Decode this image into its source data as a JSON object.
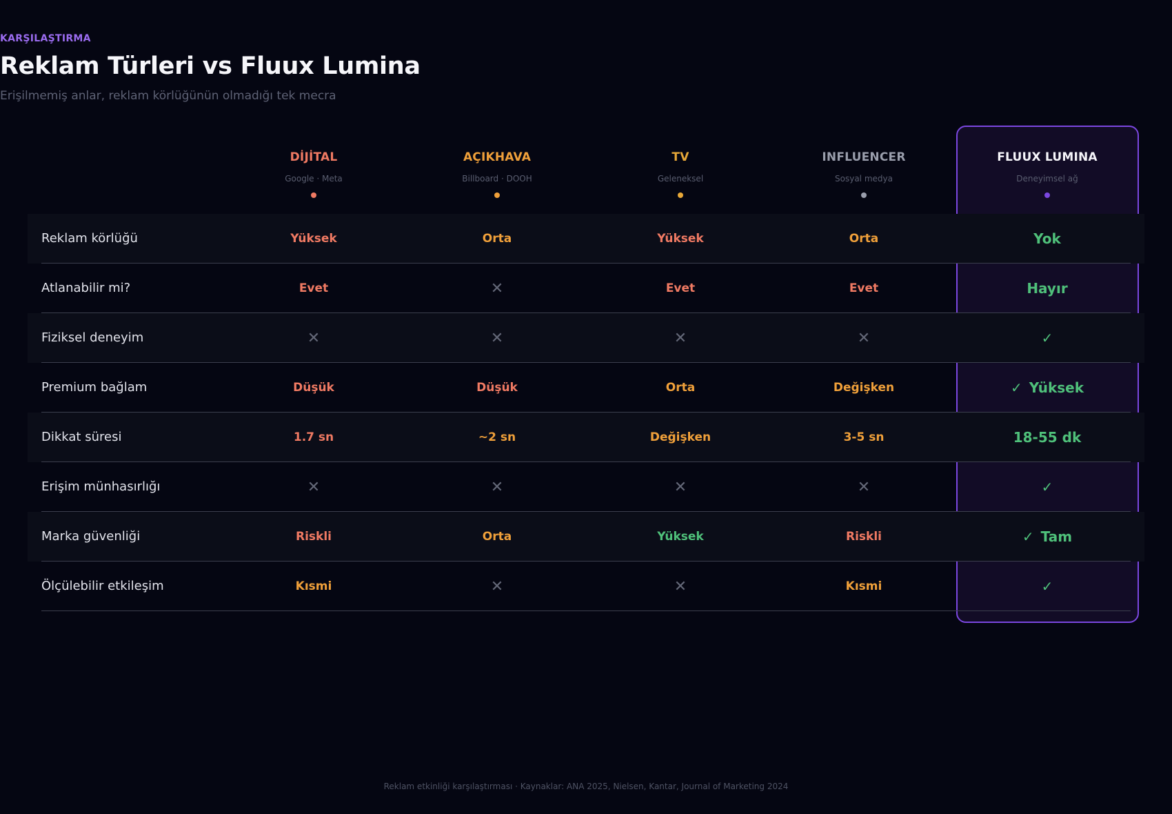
{
  "header": {
    "eyebrow": "KARŞILAŞTIRMA",
    "title": "Reklam Türleri vs Fluux Lumina",
    "subtitle": "Erişilmemiş anlar, reklam körlüğünün olmadığı tek mecra"
  },
  "colors": {
    "red": "#f07a63",
    "orange": "#f0a03a",
    "gold": "#e8a838",
    "gray": "#9a9eac",
    "green": "#4fc07a",
    "purple": "#7b47e0",
    "white": "#f6f6fa"
  },
  "columns": [
    {
      "name": "DİJİTAL",
      "sub": "Google · Meta",
      "color": "#f07a63"
    },
    {
      "name": "AÇIKHAVA",
      "sub": "Billboard · DOOH",
      "color": "#f0a03a"
    },
    {
      "name": "TV",
      "sub": "Geleneksel",
      "color": "#e8a838"
    },
    {
      "name": "INFLUENCER",
      "sub": "Sosyal medya",
      "color": "#9a9eac"
    },
    {
      "name": "FLUUX LUMINA",
      "sub": "Deneyimsel ağ",
      "color": "#f6f6fa",
      "dot": "#7b47e0"
    }
  ],
  "rows": [
    {
      "label": "Reklam körlüğü",
      "cells": [
        {
          "text": "Yüksek",
          "color": "#f07a63"
        },
        {
          "text": "Orta",
          "color": "#f0a03a"
        },
        {
          "text": "Yüksek",
          "color": "#f07a63"
        },
        {
          "text": "Orta",
          "color": "#f0a03a"
        },
        {
          "text": "Yok",
          "color": "#4fc07a"
        }
      ]
    },
    {
      "label": "Atlanabilir mi?",
      "cells": [
        {
          "text": "Evet",
          "color": "#f07a63"
        },
        {
          "icon": "x-icon"
        },
        {
          "text": "Evet",
          "color": "#f07a63"
        },
        {
          "text": "Evet",
          "color": "#f07a63"
        },
        {
          "text": "Hayır",
          "color": "#4fc07a"
        }
      ]
    },
    {
      "label": "Fiziksel deneyim",
      "cells": [
        {
          "icon": "x-icon"
        },
        {
          "icon": "x-icon"
        },
        {
          "icon": "x-icon"
        },
        {
          "icon": "x-icon"
        },
        {
          "icon": "check-icon"
        }
      ]
    },
    {
      "label": "Premium bağlam",
      "cells": [
        {
          "text": "Düşük",
          "color": "#f07a63"
        },
        {
          "text": "Düşük",
          "color": "#f07a63"
        },
        {
          "text": "Orta",
          "color": "#f0a03a"
        },
        {
          "text": "Değişken",
          "color": "#f0a03a"
        },
        {
          "text": "Yüksek",
          "color": "#4fc07a",
          "icon": "check-icon"
        }
      ]
    },
    {
      "label": "Dikkat süresi",
      "cells": [
        {
          "text": "1.7 sn",
          "color": "#f07a63"
        },
        {
          "text": "~2 sn",
          "color": "#f0a03a"
        },
        {
          "text": "Değişken",
          "color": "#f0a03a"
        },
        {
          "text": "3-5 sn",
          "color": "#f0a03a"
        },
        {
          "text": "18-55 dk",
          "color": "#4fc07a"
        }
      ]
    },
    {
      "label": "Erişim münhasırlığı",
      "cells": [
        {
          "icon": "x-icon"
        },
        {
          "icon": "x-icon"
        },
        {
          "icon": "x-icon"
        },
        {
          "icon": "x-icon"
        },
        {
          "icon": "check-icon"
        }
      ]
    },
    {
      "label": "Marka güvenliği",
      "cells": [
        {
          "text": "Riskli",
          "color": "#f07a63"
        },
        {
          "text": "Orta",
          "color": "#f0a03a"
        },
        {
          "text": "Yüksek",
          "color": "#4fc07a"
        },
        {
          "text": "Riskli",
          "color": "#f07a63"
        },
        {
          "text": "Tam",
          "color": "#4fc07a",
          "icon": "check-icon"
        }
      ]
    },
    {
      "label": "Ölçülebilir etkileşim",
      "cells": [
        {
          "text": "Kısmi",
          "color": "#f0a03a"
        },
        {
          "icon": "x-icon"
        },
        {
          "icon": "x-icon"
        },
        {
          "text": "Kısmi",
          "color": "#f0a03a"
        },
        {
          "icon": "check-icon"
        }
      ]
    }
  ],
  "footer": "Reklam etkinliği karşılaştırması · Kaynaklar: ANA 2025, Nielsen, Kantar, Journal of Marketing 2024"
}
